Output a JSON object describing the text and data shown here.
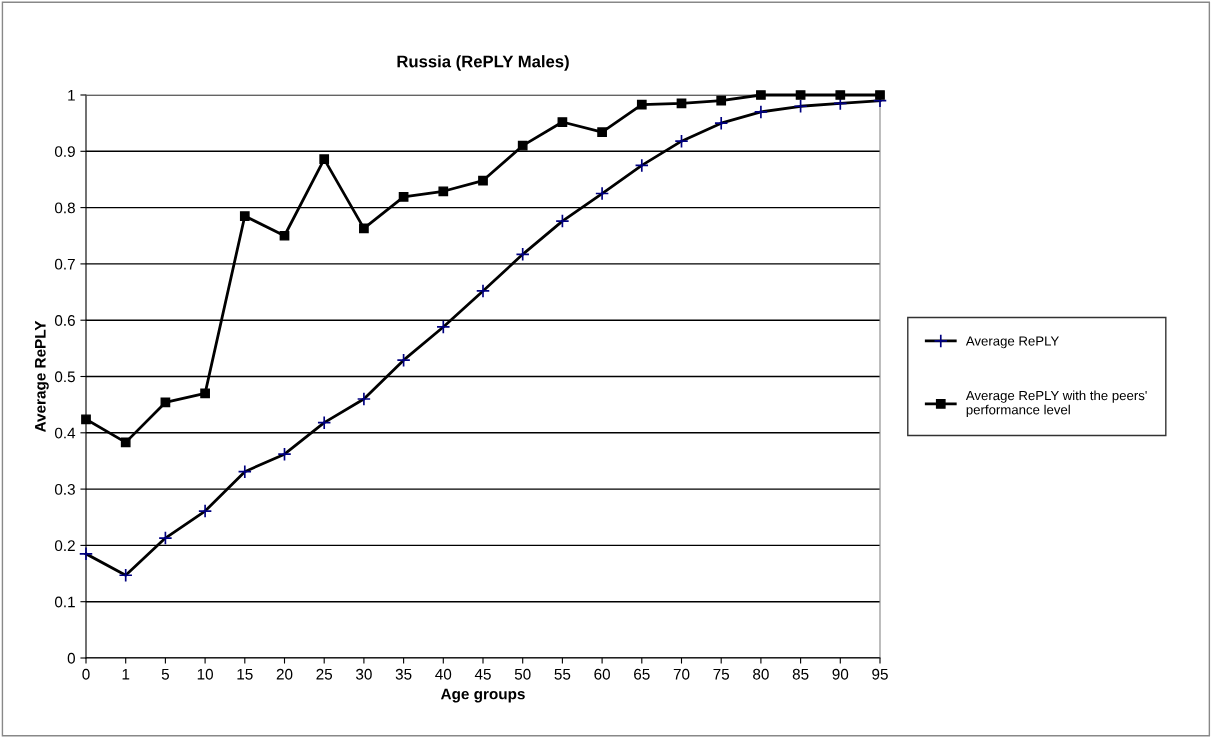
{
  "chart_data": {
    "type": "line",
    "title": "Russia (RePLY Males)",
    "xlabel": "Age groups",
    "ylabel": "Average RePLY",
    "categories": [
      "0",
      "1",
      "5",
      "10",
      "15",
      "20",
      "25",
      "30",
      "35",
      "40",
      "45",
      "50",
      "55",
      "60",
      "65",
      "70",
      "75",
      "80",
      "85",
      "90",
      "95"
    ],
    "series": [
      {
        "name": "Average RePLY",
        "color": "#000000",
        "marker": "cross",
        "values": [
          0.185,
          0.147,
          0.213,
          0.261,
          0.331,
          0.362,
          0.418,
          0.46,
          0.529,
          0.588,
          0.652,
          0.717,
          0.776,
          0.825,
          0.875,
          0.918,
          0.95,
          0.97,
          0.98,
          0.985,
          0.99
        ]
      },
      {
        "name": "Average RePLY with the peers' performance level",
        "color": "#000000",
        "marker": "square",
        "values": [
          0.424,
          0.383,
          0.454,
          0.47,
          0.785,
          0.75,
          0.886,
          0.763,
          0.819,
          0.829,
          0.848,
          0.91,
          0.952,
          0.934,
          0.983,
          0.985,
          0.99,
          1.0,
          1.0,
          1.0,
          1.0
        ]
      }
    ],
    "ylim": [
      0,
      1
    ],
    "yticks": [
      0,
      0.1,
      0.2,
      0.3,
      0.4,
      0.5,
      0.6,
      0.7,
      0.8,
      0.9,
      1
    ],
    "grid": "y",
    "legend": "right"
  }
}
